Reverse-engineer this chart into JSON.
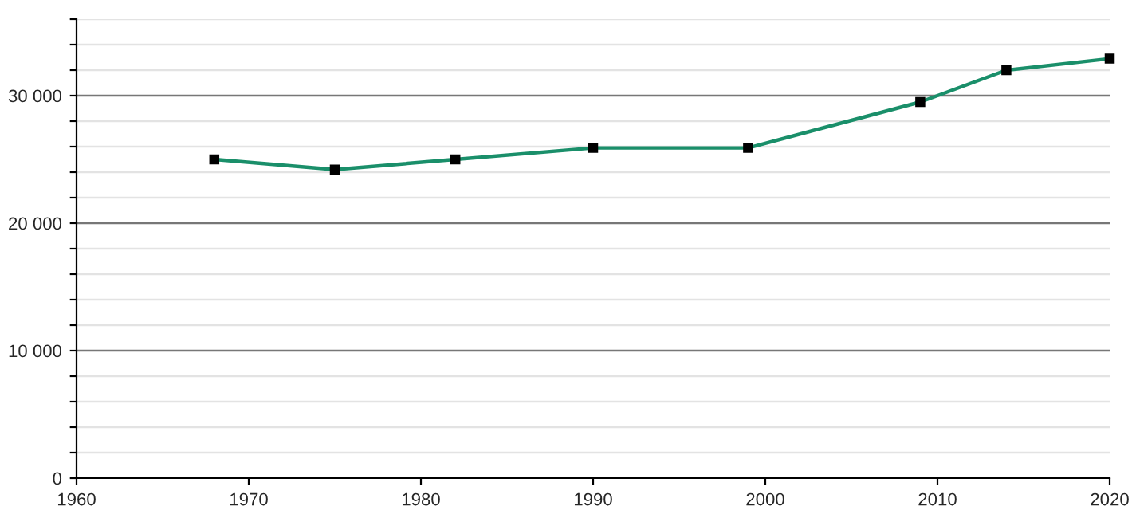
{
  "chart_data": {
    "type": "line",
    "x": [
      1968,
      1975,
      1982,
      1990,
      1999,
      2009,
      2014,
      2020
    ],
    "series": [
      {
        "color": "#1a8f6a",
        "values": [
          25000,
          24200,
          25000,
          25900,
          25900,
          29500,
          32000,
          32900
        ]
      }
    ],
    "xlim": [
      1960,
      2020
    ],
    "xticks": [
      1960,
      1970,
      1980,
      1990,
      2000,
      2010,
      2020
    ],
    "ylim": [
      0,
      36000
    ],
    "yticks": [
      {
        "value": 0,
        "label": "0"
      },
      {
        "value": 2000,
        "label": null
      },
      {
        "value": 4000,
        "label": null
      },
      {
        "value": 6000,
        "label": null
      },
      {
        "value": 8000,
        "label": null
      },
      {
        "value": 10000,
        "label": "10 000"
      },
      {
        "value": 12000,
        "label": null
      },
      {
        "value": 14000,
        "label": null
      },
      {
        "value": 16000,
        "label": null
      },
      {
        "value": 18000,
        "label": null
      },
      {
        "value": 20000,
        "label": "20 000"
      },
      {
        "value": 22000,
        "label": null
      },
      {
        "value": 24000,
        "label": null
      },
      {
        "value": 26000,
        "label": null
      },
      {
        "value": 28000,
        "label": null
      },
      {
        "value": 30000,
        "label": "30 000"
      },
      {
        "value": 32000,
        "label": null
      },
      {
        "value": 34000,
        "label": null
      },
      {
        "value": 36000,
        "label": null
      }
    ],
    "grid": "y",
    "marker": "square",
    "line_style": "solid",
    "legend": false
  }
}
